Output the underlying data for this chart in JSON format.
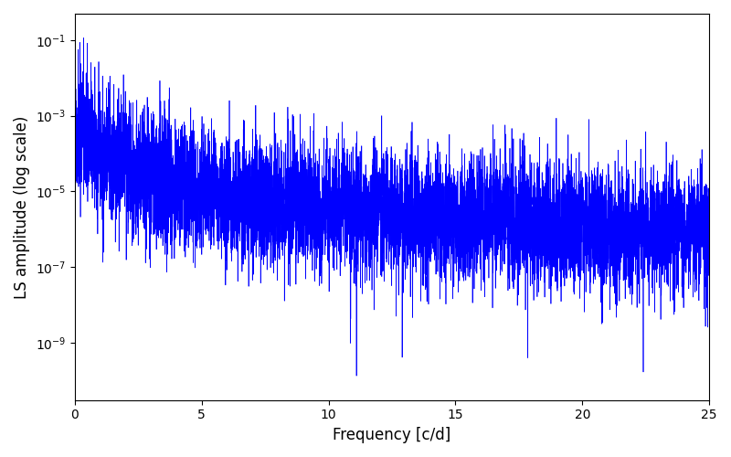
{
  "title": "",
  "xlabel": "Frequency [c/d]",
  "ylabel": "LS amplitude (log scale)",
  "line_color": "#0000ff",
  "line_width": 0.5,
  "xlim": [
    0,
    25
  ],
  "ylim": [
    3e-11,
    0.5
  ],
  "freq_max": 25.0,
  "n_points": 8000,
  "seed": 17,
  "background_color": "#ffffff",
  "figsize": [
    8.0,
    5.0
  ],
  "dpi": 100,
  "xticks": [
    0,
    5,
    10,
    15,
    20,
    25
  ]
}
